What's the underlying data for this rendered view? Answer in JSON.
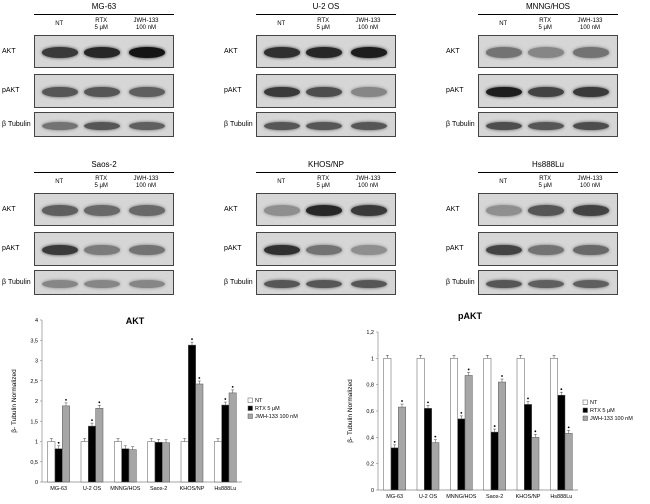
{
  "lane_labels": [
    {
      "top": "NT",
      "bottom": ""
    },
    {
      "top": "RTX",
      "bottom": "5 μM"
    },
    {
      "top": "JWH-133",
      "bottom": "100 nM"
    }
  ],
  "blot_panels": [
    {
      "title": "MG-63",
      "rows": [
        "AKT",
        "pAKT",
        "β Tubulin"
      ]
    },
    {
      "title": "U-2 OS",
      "rows": [
        "AKT",
        "pAKT",
        "β Tubulin"
      ]
    },
    {
      "title": "MNNG/HOS",
      "rows": [
        "AKT",
        "pAKT",
        "β Tubulin"
      ]
    },
    {
      "title": "Saos-2",
      "rows": [
        "AKT",
        "pAKT",
        "β Tubulin"
      ]
    },
    {
      "title": "KHOS/NP",
      "rows": [
        "AKT",
        "pAKT",
        "β Tubulin"
      ]
    },
    {
      "title": "Hs888Lu",
      "rows": [
        "AKT",
        "pAKT",
        "β Tubulin"
      ]
    }
  ],
  "blot_intensity": [
    [
      [
        0.75,
        0.85,
        0.95
      ],
      [
        0.6,
        0.6,
        0.55
      ],
      [
        0.45,
        0.6,
        0.55
      ]
    ],
    [
      [
        0.8,
        0.85,
        0.9
      ],
      [
        0.75,
        0.65,
        0.35
      ],
      [
        0.6,
        0.6,
        0.6
      ]
    ],
    [
      [
        0.45,
        0.35,
        0.45
      ],
      [
        0.9,
        0.7,
        0.75
      ],
      [
        0.65,
        0.6,
        0.65
      ]
    ],
    [
      [
        0.55,
        0.5,
        0.5
      ],
      [
        0.75,
        0.4,
        0.45
      ],
      [
        0.35,
        0.35,
        0.35
      ]
    ],
    [
      [
        0.3,
        0.85,
        0.75
      ],
      [
        0.8,
        0.45,
        0.3
      ],
      [
        0.6,
        0.6,
        0.6
      ]
    ],
    [
      [
        0.3,
        0.6,
        0.7
      ],
      [
        0.7,
        0.45,
        0.5
      ],
      [
        0.6,
        0.55,
        0.55
      ]
    ]
  ],
  "chart_data": [
    {
      "type": "bar",
      "title": "AKT",
      "ylabel": "β- Tubulin Normalized",
      "xlabel": "",
      "ylim": [
        0,
        4
      ],
      "yticks": [
        "0",
        "0,5",
        "1",
        "1,5",
        "2",
        "2,5",
        "3",
        "3,5",
        "4"
      ],
      "categories": [
        "MG-63",
        "U-2 OS",
        "MNNG/HOS",
        "Saos-2",
        "KHOS/NP",
        "Hs888Lu"
      ],
      "series": [
        {
          "name": "NT",
          "color": "#ffffff",
          "values": [
            1,
            1,
            1,
            1,
            1,
            1
          ]
        },
        {
          "name": "RTX 5 μM",
          "color": "#000000",
          "values": [
            0.82,
            1.38,
            0.82,
            0.98,
            3.38,
            1.9
          ]
        },
        {
          "name": "JWH-133 100 nM",
          "color": "#a6a6a6",
          "values": [
            1.88,
            1.82,
            0.8,
            0.97,
            2.42,
            2.2
          ]
        }
      ],
      "significance": [
        [
          false,
          true,
          true
        ],
        [
          false,
          true,
          true
        ],
        [
          false,
          false,
          false
        ],
        [
          false,
          false,
          false
        ],
        [
          false,
          true,
          true
        ],
        [
          false,
          true,
          true
        ]
      ],
      "legend": "right"
    },
    {
      "type": "bar",
      "title": "pAKT",
      "ylabel": "β- Tubulin Normalized",
      "xlabel": "",
      "ylim": [
        0,
        1.2
      ],
      "yticks": [
        "0",
        "0,2",
        "0,4",
        "0,6",
        "0,8",
        "1",
        "1,2"
      ],
      "categories": [
        "MG-63",
        "U-2 OS",
        "MNNG/HOS",
        "Saos-2",
        "KHOS/NP",
        "Hs888Lu"
      ],
      "series": [
        {
          "name": "NT",
          "color": "#ffffff",
          "values": [
            1,
            1,
            1,
            1,
            1,
            1
          ]
        },
        {
          "name": "RTX 5 μM",
          "color": "#000000",
          "values": [
            0.32,
            0.62,
            0.54,
            0.44,
            0.65,
            0.72
          ]
        },
        {
          "name": "JWH-133 100 nM",
          "color": "#a6a6a6",
          "values": [
            0.63,
            0.36,
            0.87,
            0.82,
            0.4,
            0.43
          ]
        }
      ],
      "significance": [
        [
          false,
          true,
          true
        ],
        [
          false,
          true,
          true
        ],
        [
          false,
          true,
          true
        ],
        [
          false,
          true,
          true
        ],
        [
          false,
          true,
          true
        ],
        [
          false,
          true,
          true
        ]
      ],
      "legend": "right"
    }
  ]
}
